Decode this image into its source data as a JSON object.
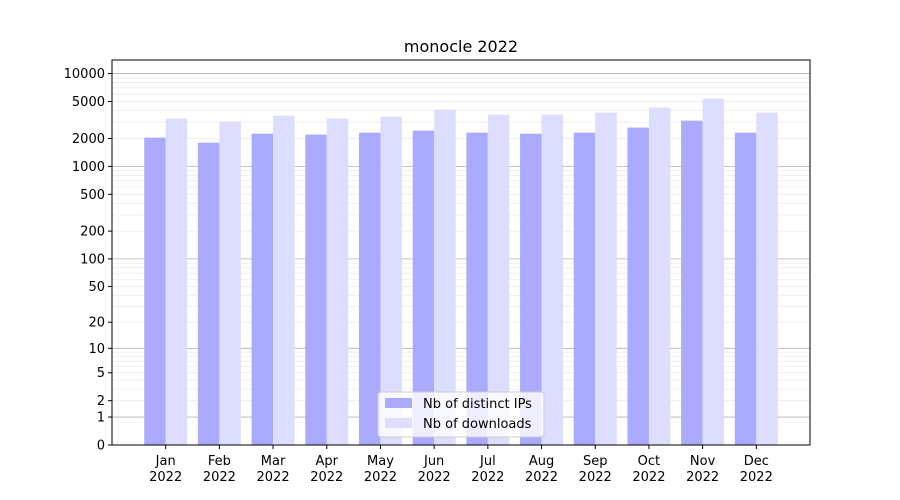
{
  "chart_data": {
    "type": "bar",
    "title": "monocle 2022",
    "xlabel": "",
    "ylabel": "",
    "yscale": "log10(y+1)",
    "ylim": [
      0,
      14000
    ],
    "yticks": [
      0,
      1,
      2,
      5,
      10,
      20,
      50,
      100,
      200,
      500,
      1000,
      2000,
      5000,
      10000
    ],
    "grid": true,
    "legend_position": "lower center",
    "categories": [
      "Jan\n2022",
      "Feb\n2022",
      "Mar\n2022",
      "Apr\n2022",
      "May\n2022",
      "Jun\n2022",
      "Jul\n2022",
      "Aug\n2022",
      "Sep\n2022",
      "Oct\n2022",
      "Nov\n2022",
      "Dec\n2022"
    ],
    "series": [
      {
        "name": "Nb of distinct IPs",
        "color": "#aaaaff",
        "values": [
          2040,
          1800,
          2250,
          2200,
          2310,
          2430,
          2310,
          2250,
          2310,
          2620,
          3110,
          2310
        ]
      },
      {
        "name": "Nb of downloads",
        "color": "#ddddff",
        "values": [
          3270,
          3040,
          3520,
          3270,
          3440,
          4090,
          3610,
          3610,
          3800,
          4300,
          5370,
          3800
        ]
      }
    ]
  }
}
